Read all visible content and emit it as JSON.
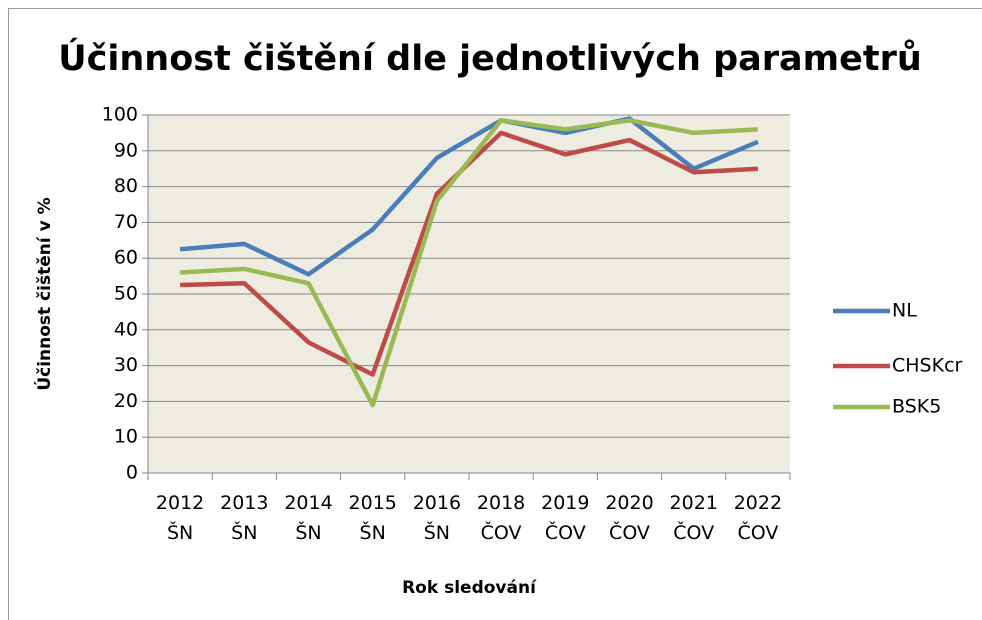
{
  "chart_data": {
    "type": "line",
    "title": "Účinnost čištění dle jednotlivých parametrů",
    "y_label": "Účinnost čištění v %",
    "x_label": "Rok sledování",
    "categories": [
      "2012 ŠN",
      "2013 ŠN",
      "2014 ŠN",
      "2015 ŠN",
      "2016 ŠN",
      "2018 ČOV",
      "2019 ČOV",
      "2020 ČOV",
      "2021 ČOV",
      "2022 ČOV"
    ],
    "series": [
      {
        "name": "NL",
        "color": "#4a7ebb",
        "values": [
          62.5,
          64,
          55.5,
          68,
          88,
          98.5,
          95,
          99,
          85,
          92.5
        ]
      },
      {
        "name": "CHSKcr",
        "color": "#be4b48",
        "values": [
          52.5,
          53,
          36.5,
          27.5,
          78,
          95,
          89,
          93,
          84,
          85
        ]
      },
      {
        "name": "BSK5",
        "color": "#98b954",
        "values": [
          56,
          57,
          53,
          19,
          76,
          98.5,
          96,
          98.5,
          95,
          96
        ]
      }
    ],
    "ylim": [
      0,
      100
    ],
    "yticks": [
      0,
      10,
      20,
      30,
      40,
      50,
      60,
      70,
      80,
      90,
      100
    ],
    "grid": true,
    "legend": "right",
    "plot_background": "#eeece1"
  }
}
